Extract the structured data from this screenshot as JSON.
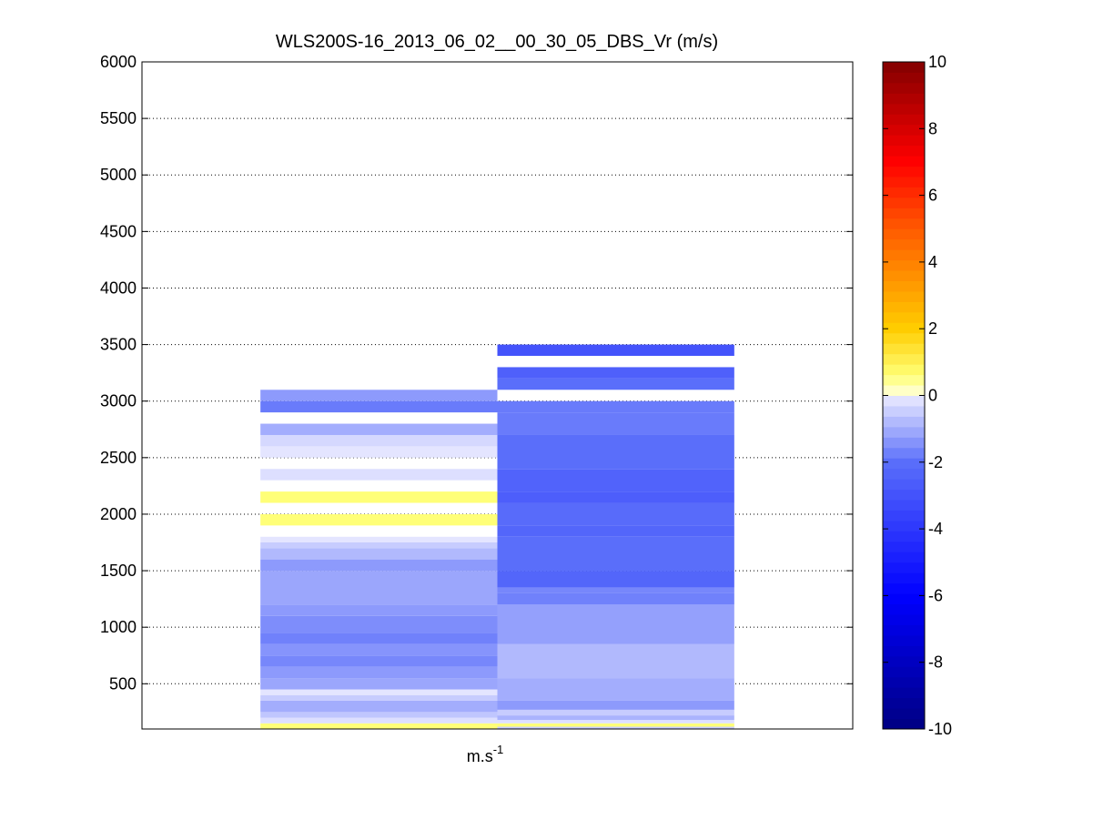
{
  "chart_data": {
    "type": "heatmap",
    "title": "WLS200S-16_2013_06_02__00_30_05_DBS_Vr (m/s)",
    "xlabel": "m.s",
    "xlabel_superscript": "-1",
    "ylabel": "",
    "ylim": [
      100,
      6000
    ],
    "yticks": [
      500,
      1000,
      1500,
      2000,
      2500,
      3000,
      3500,
      4000,
      4500,
      5000,
      5500,
      6000
    ],
    "ygrid": "dotted",
    "xgrid": false,
    "colorbar": {
      "position": "right",
      "range": [
        -10,
        10
      ],
      "ticks": [
        -10,
        -8,
        -6,
        -4,
        -2,
        0,
        2,
        4,
        6,
        8,
        10
      ],
      "colormap": "blue-white-yellow-red"
    },
    "series": [
      {
        "name": "",
        "x_range": [
          0.5,
          1.5
        ],
        "cells": [
          {
            "y0": 100,
            "y1": 150,
            "vr": 0.6
          },
          {
            "y0": 150,
            "y1": 200,
            "vr": -0.2
          },
          {
            "y0": 200,
            "y1": 250,
            "vr": -0.6
          },
          {
            "y0": 250,
            "y1": 350,
            "vr": -1.0
          },
          {
            "y0": 350,
            "y1": 400,
            "vr": -0.5
          },
          {
            "y0": 400,
            "y1": 450,
            "vr": -0.1
          },
          {
            "y0": 450,
            "y1": 550,
            "vr": -1.1
          },
          {
            "y0": 550,
            "y1": 650,
            "vr": -1.3
          },
          {
            "y0": 650,
            "y1": 750,
            "vr": -1.6
          },
          {
            "y0": 750,
            "y1": 850,
            "vr": -1.4
          },
          {
            "y0": 850,
            "y1": 950,
            "vr": -1.7
          },
          {
            "y0": 950,
            "y1": 1100,
            "vr": -1.5
          },
          {
            "y0": 1100,
            "y1": 1200,
            "vr": -1.3
          },
          {
            "y0": 1200,
            "y1": 1500,
            "vr": -1.1
          },
          {
            "y0": 1500,
            "y1": 1600,
            "vr": -1.3
          },
          {
            "y0": 1600,
            "y1": 1700,
            "vr": -0.8
          },
          {
            "y0": 1700,
            "y1": 1750,
            "vr": -0.5
          },
          {
            "y0": 1750,
            "y1": 1800,
            "vr": -0.1
          },
          {
            "y0": 1800,
            "y1": 1900,
            "vr": null
          },
          {
            "y0": 1900,
            "y1": 2000,
            "vr": 0.6
          },
          {
            "y0": 2000,
            "y1": 2100,
            "vr": null
          },
          {
            "y0": 2100,
            "y1": 2200,
            "vr": 0.6
          },
          {
            "y0": 2200,
            "y1": 2300,
            "vr": null
          },
          {
            "y0": 2300,
            "y1": 2400,
            "vr": -0.2
          },
          {
            "y0": 2400,
            "y1": 2500,
            "vr": null
          },
          {
            "y0": 2500,
            "y1": 2600,
            "vr": -0.1
          },
          {
            "y0": 2600,
            "y1": 2700,
            "vr": -0.3
          },
          {
            "y0": 2700,
            "y1": 2800,
            "vr": -1.0
          },
          {
            "y0": 2800,
            "y1": 2900,
            "vr": null
          },
          {
            "y0": 2900,
            "y1": 3000,
            "vr": -1.8
          },
          {
            "y0": 3000,
            "y1": 3100,
            "vr": -1.3
          }
        ]
      },
      {
        "name": "",
        "x_range": [
          1.5,
          2.5
        ],
        "cells": [
          {
            "y0": 100,
            "y1": 120,
            "vr": -0.5
          },
          {
            "y0": 120,
            "y1": 150,
            "vr": 0.6
          },
          {
            "y0": 150,
            "y1": 180,
            "vr": -0.2
          },
          {
            "y0": 180,
            "y1": 220,
            "vr": -0.9
          },
          {
            "y0": 220,
            "y1": 270,
            "vr": -0.5
          },
          {
            "y0": 270,
            "y1": 350,
            "vr": -1.3
          },
          {
            "y0": 350,
            "y1": 550,
            "vr": -1.0
          },
          {
            "y0": 550,
            "y1": 850,
            "vr": -0.8
          },
          {
            "y0": 850,
            "y1": 1200,
            "vr": -1.2
          },
          {
            "y0": 1200,
            "y1": 1300,
            "vr": -1.7
          },
          {
            "y0": 1300,
            "y1": 1350,
            "vr": -1.6
          },
          {
            "y0": 1350,
            "y1": 1500,
            "vr": -2.3
          },
          {
            "y0": 1500,
            "y1": 1800,
            "vr": -2.0
          },
          {
            "y0": 1800,
            "y1": 1900,
            "vr": -2.3
          },
          {
            "y0": 1900,
            "y1": 2100,
            "vr": -2.1
          },
          {
            "y0": 2100,
            "y1": 2200,
            "vr": -2.6
          },
          {
            "y0": 2200,
            "y1": 2400,
            "vr": -2.4
          },
          {
            "y0": 2400,
            "y1": 2700,
            "vr": -2.0
          },
          {
            "y0": 2700,
            "y1": 2900,
            "vr": -1.8
          },
          {
            "y0": 2900,
            "y1": 3000,
            "vr": -1.8
          },
          {
            "y0": 3000,
            "y1": 3100,
            "vr": null
          },
          {
            "y0": 3100,
            "y1": 3200,
            "vr": -2.0
          },
          {
            "y0": 3200,
            "y1": 3300,
            "vr": -2.5
          },
          {
            "y0": 3300,
            "y1": 3400,
            "vr": null
          },
          {
            "y0": 3400,
            "y1": 3500,
            "vr": -3.0
          }
        ]
      }
    ]
  }
}
